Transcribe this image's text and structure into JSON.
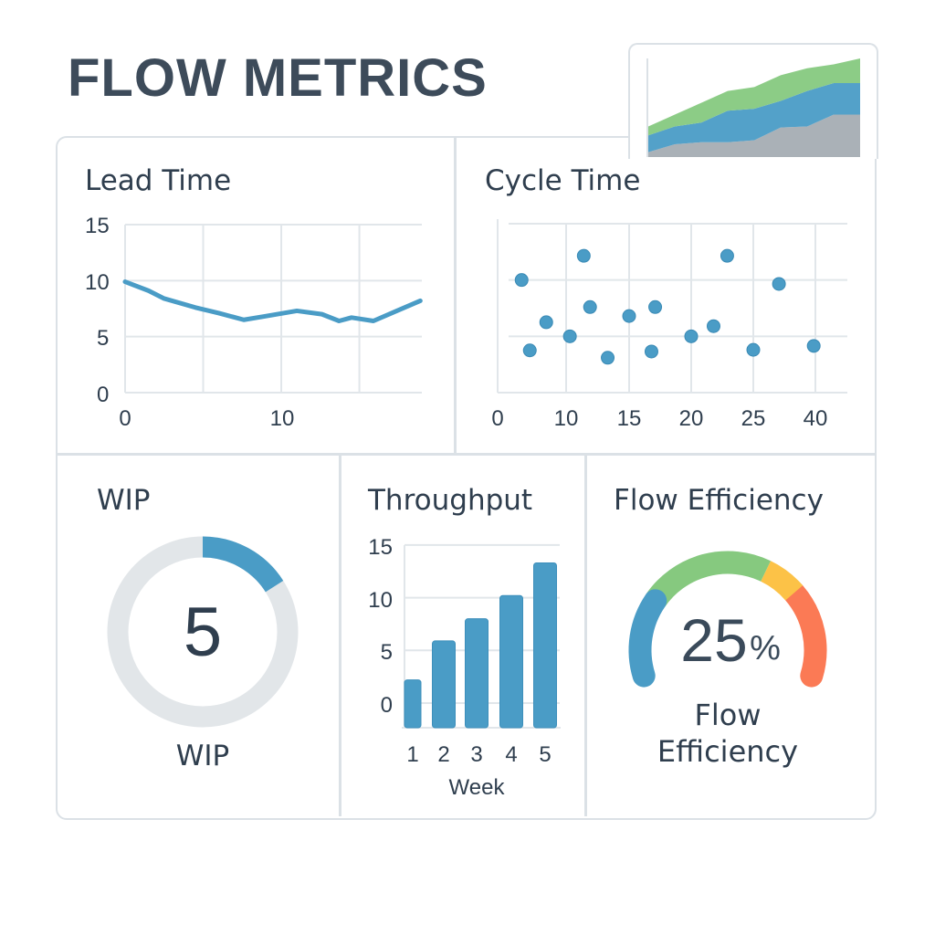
{
  "header": {
    "title": "FLOW METRICS"
  },
  "colors": {
    "blue": "#4a9cc6",
    "green": "#86c97f",
    "yellow": "#fcc247",
    "red": "#fb7a55",
    "gray_area": "#a5adb3",
    "ring": "#e2e6e9",
    "grid": "#e1e6ea",
    "text": "#2f3e4e"
  },
  "chart_data": [
    {
      "id": "cumulative_flow",
      "type": "area",
      "stacked": true,
      "title": "",
      "x": [
        0,
        1,
        2,
        3,
        4,
        5,
        6,
        7,
        8
      ],
      "series": [
        {
          "color": "#a5adb3",
          "values": [
            5,
            13,
            15,
            15,
            17,
            30,
            31,
            43,
            43
          ]
        },
        {
          "color": "#4a9cc6",
          "values": [
            17,
            18,
            20,
            32,
            32,
            27,
            36,
            32,
            32
          ]
        },
        {
          "color": "#86c97f",
          "values": [
            9,
            12,
            20,
            20,
            22,
            26,
            23,
            19,
            25
          ]
        }
      ],
      "ylim": [
        0,
        100
      ],
      "grid": false
    },
    {
      "id": "lead_time",
      "type": "line",
      "title": "Lead Time",
      "x": [
        0,
        1.5,
        2.5,
        4.5,
        6,
        7.6,
        8.9,
        11,
        12.6,
        13.7,
        14.5,
        15.9,
        17.4,
        18.9
      ],
      "values": [
        9.9,
        9.1,
        8.4,
        7.6,
        7.1,
        6.5,
        6.8,
        7.3,
        7.0,
        6.4,
        6.7,
        6.4,
        7.3,
        8.2
      ],
      "xlim": [
        0,
        19
      ],
      "ylim": [
        0,
        15
      ],
      "xticks": [
        "0",
        "10"
      ],
      "yticks": [
        "15",
        "10",
        "5",
        "0"
      ],
      "grid": true,
      "color": "#4a9cc6"
    },
    {
      "id": "cycle_time",
      "type": "scatter",
      "title": "Cycle Time",
      "xticks": [
        "0",
        "10",
        "15",
        "20",
        "25",
        "40"
      ],
      "points": [
        {
          "x": 3.5,
          "y": 2.0
        },
        {
          "x": 4.7,
          "y": 0.75
        },
        {
          "x": 7.1,
          "y": 1.25
        },
        {
          "x": 10.3,
          "y": 1.0
        },
        {
          "x": 11.4,
          "y": 2.43
        },
        {
          "x": 11.9,
          "y": 1.52
        },
        {
          "x": 13.3,
          "y": 0.62
        },
        {
          "x": 15,
          "y": 1.36
        },
        {
          "x": 16.8,
          "y": 0.73
        },
        {
          "x": 17.1,
          "y": 1.52
        },
        {
          "x": 20,
          "y": 1.0
        },
        {
          "x": 21.8,
          "y": 1.18
        },
        {
          "x": 22.9,
          "y": 2.43
        },
        {
          "x": 25,
          "y": 0.76
        },
        {
          "x": 31.2,
          "y": 1.93
        },
        {
          "x": 39.6,
          "y": 0.83
        }
      ],
      "ylim": [
        0,
        3
      ],
      "grid": true,
      "color": "#4a9cc6"
    },
    {
      "id": "wip",
      "type": "donut",
      "title": "WIP",
      "value": "5",
      "label": "WIP",
      "fill_fraction": 0.16,
      "color": "#4a9cc6",
      "track_color": "#e2e6e9"
    },
    {
      "id": "throughput",
      "type": "bar",
      "title": "Throughput",
      "categories": [
        "1",
        "2",
        "3",
        "4",
        "5"
      ],
      "values": [
        2.2,
        5.9,
        8,
        10.2,
        13.3
      ],
      "xlabel": "Week",
      "ylabel": "",
      "ylim": [
        0,
        15
      ],
      "yticks": [
        "15",
        "10",
        "5",
        "0"
      ],
      "grid": true,
      "color": "#4a9cc6"
    },
    {
      "id": "flow_efficiency",
      "type": "gauge",
      "title": "Flow Efficiency",
      "value": "25",
      "unit": "%",
      "label_line1": "Flow",
      "label_line2": "Efficiency",
      "segments": [
        {
          "color": "#4a9cc6",
          "fraction": 0.24
        },
        {
          "color": "#86c97f",
          "fraction": 0.38
        },
        {
          "color": "#fcc247",
          "fraction": 0.11
        },
        {
          "color": "#fb7a55",
          "fraction": 0.27
        }
      ]
    }
  ]
}
